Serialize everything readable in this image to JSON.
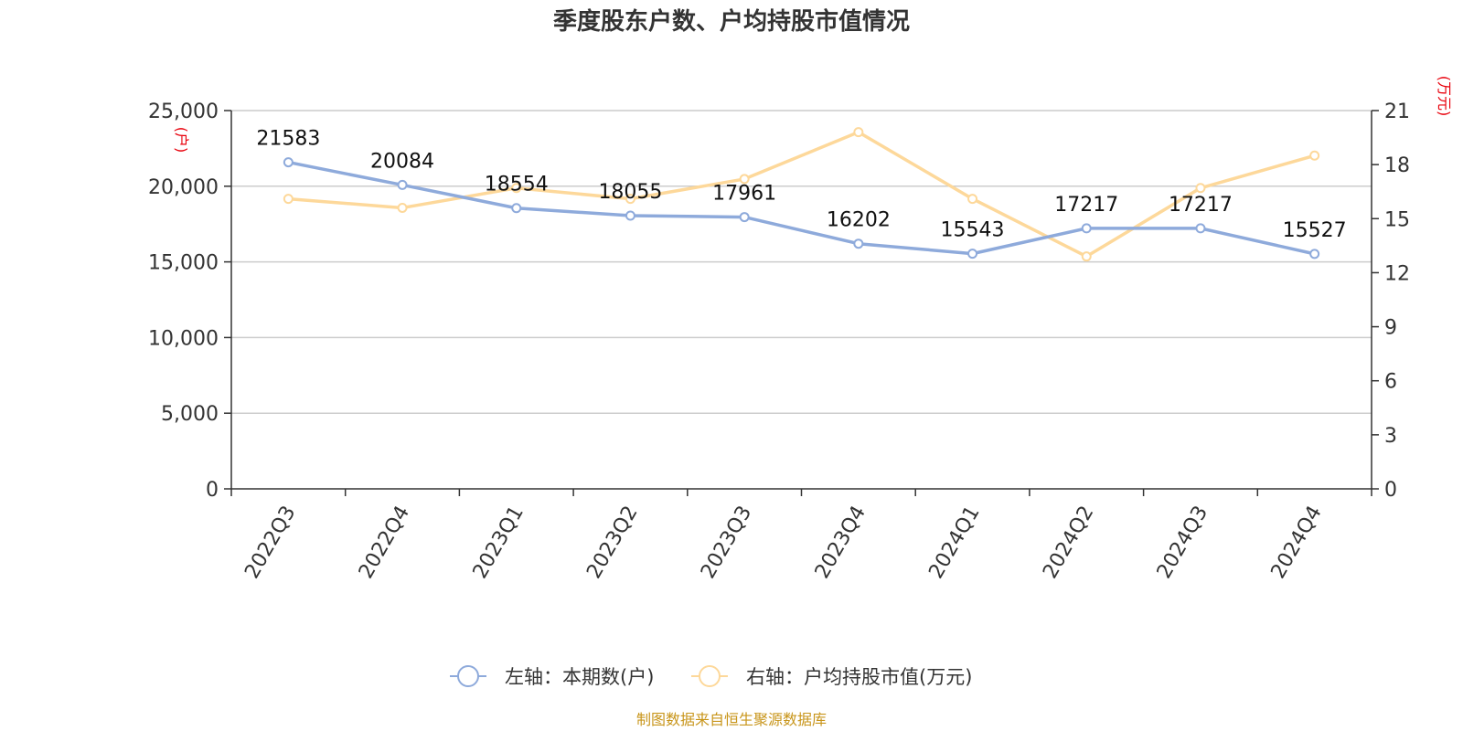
{
  "chart_data": {
    "type": "line",
    "title": "季度股东户数、户均持股市值情况",
    "categories": [
      "2022Q3",
      "2022Q4",
      "2023Q1",
      "2023Q2",
      "2023Q3",
      "2023Q4",
      "2024Q1",
      "2024Q2",
      "2024Q3",
      "2024Q4"
    ],
    "series": [
      {
        "name": "左轴：本期数(户)",
        "axis": "left",
        "color": "#8eaadb",
        "values": [
          21583,
          20084,
          18554,
          18055,
          17961,
          16202,
          15543,
          17217,
          17217,
          15527
        ],
        "data_labels": [
          "21583",
          "20084",
          "18554",
          "18055",
          "17961",
          "16202",
          "15543",
          "17217",
          "17217",
          "15527"
        ]
      },
      {
        "name": "右轴：户均持股市值(万元)",
        "axis": "right",
        "color": "#fdd89a",
        "values": [
          16.1,
          15.6,
          16.7,
          16.1,
          17.2,
          19.8,
          16.1,
          12.9,
          16.7,
          18.5
        ]
      }
    ],
    "y_left": {
      "range": [
        0,
        25000
      ],
      "ticks": [
        "0",
        "5,000",
        "10,000",
        "15,000",
        "20,000",
        "25,000"
      ],
      "unit": "(户)"
    },
    "y_right": {
      "range": [
        0,
        21
      ],
      "ticks": [
        "0",
        "3",
        "6",
        "9",
        "12",
        "15",
        "18",
        "21"
      ],
      "unit": "(万元)"
    },
    "grid": true,
    "legend_position": "bottom",
    "source": "制图数据来自恒生聚源数据库"
  }
}
